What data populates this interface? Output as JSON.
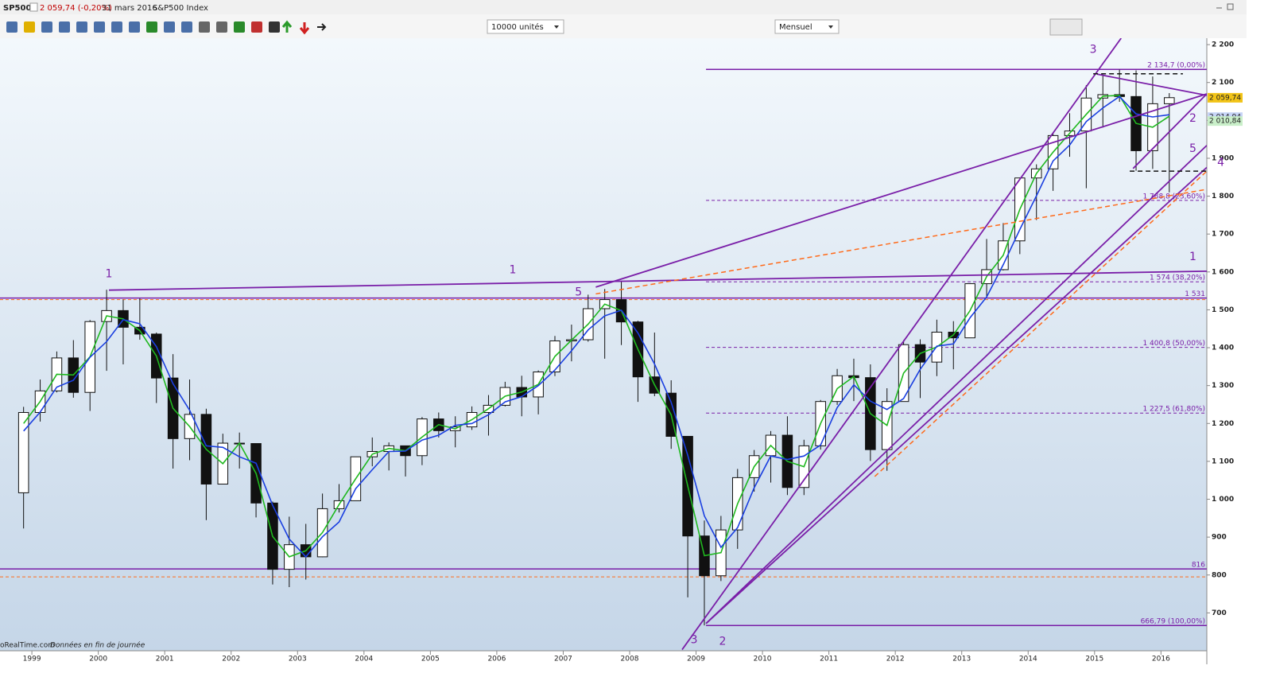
{
  "header": {
    "symbol": "SP500",
    "change": "2 059,74 (-0,20%)",
    "date": "31 mars 2016",
    "name": "S&P500 Index"
  },
  "toolbar": {
    "units": "10000 unités",
    "period": "Mensuel"
  },
  "footer": {
    "source": "oRealTime.com",
    "note": "Données en fin de journée"
  },
  "chart_data": {
    "type": "candlestick",
    "xlim": [
      1998.52,
      2016.69
    ],
    "xticks": [
      1999,
      2000,
      2001,
      2002,
      2003,
      2004,
      2005,
      2006,
      2007,
      2008,
      2009,
      2010,
      2011,
      2012,
      2013,
      2014,
      2015,
      2016
    ],
    "ylim": [
      600,
      2217
    ],
    "yticks": [
      700,
      800,
      900,
      {
        "value": 1000,
        "label": "1 000"
      },
      {
        "value": 1100,
        "label": "1 100"
      },
      {
        "value": 1200,
        "label": "1 200"
      },
      {
        "value": 1300,
        "label": "1 300"
      },
      {
        "value": 1400,
        "label": "1 400"
      },
      {
        "value": 1500,
        "label": "1 500"
      },
      {
        "value": 1600,
        "label": "1 600"
      },
      {
        "value": 1700,
        "label": "1 700"
      },
      {
        "value": 1800,
        "label": "1 800"
      },
      {
        "value": 1900,
        "label": "1 900"
      },
      {
        "value": 2000,
        "label": "2 000"
      },
      {
        "value": 2100,
        "label": "2 100"
      },
      {
        "value": 2200,
        "label": "2 200"
      }
    ],
    "x": [
      1998.875,
      1999.125,
      1999.375,
      1999.625,
      1999.875,
      2000.125,
      2000.375,
      2000.625,
      2000.875,
      2001.125,
      2001.375,
      2001.625,
      2001.875,
      2002.125,
      2002.375,
      2002.625,
      2002.875,
      2003.125,
      2003.375,
      2003.625,
      2003.875,
      2004.125,
      2004.375,
      2004.625,
      2004.875,
      2005.125,
      2005.375,
      2005.625,
      2005.875,
      2006.125,
      2006.375,
      2006.625,
      2006.875,
      2007.125,
      2007.375,
      2007.625,
      2007.875,
      2008.125,
      2008.375,
      2008.625,
      2008.875,
      2009.125,
      2009.375,
      2009.625,
      2009.875,
      2010.125,
      2010.375,
      2010.625,
      2010.875,
      2011.125,
      2011.375,
      2011.625,
      2011.875,
      2012.125,
      2012.375,
      2012.625,
      2012.875,
      2013.125,
      2013.375,
      2013.625,
      2013.875,
      2014.125,
      2014.375,
      2014.625,
      2014.875,
      2015.125,
      2015.375,
      2015.625,
      2015.875,
      2016.125
    ],
    "candles": [
      {
        "o": 1017,
        "h": 1244,
        "l": 923,
        "c": 1229
      },
      {
        "o": 1229,
        "h": 1316,
        "l": 1205,
        "c": 1286
      },
      {
        "o": 1286,
        "h": 1390,
        "l": 1282,
        "c": 1373
      },
      {
        "o": 1373,
        "h": 1420,
        "l": 1268,
        "c": 1282
      },
      {
        "o": 1282,
        "h": 1473,
        "l": 1233,
        "c": 1469
      },
      {
        "o": 1469,
        "h": 1553,
        "l": 1339,
        "c": 1498
      },
      {
        "o": 1498,
        "h": 1527,
        "l": 1356,
        "c": 1454
      },
      {
        "o": 1454,
        "h": 1530,
        "l": 1421,
        "c": 1436
      },
      {
        "o": 1436,
        "h": 1440,
        "l": 1254,
        "c": 1320
      },
      {
        "o": 1320,
        "h": 1383,
        "l": 1081,
        "c": 1160
      },
      {
        "o": 1160,
        "h": 1316,
        "l": 1103,
        "c": 1224
      },
      {
        "o": 1224,
        "h": 1239,
        "l": 945,
        "c": 1040
      },
      {
        "o": 1040,
        "h": 1173,
        "l": 1040,
        "c": 1148
      },
      {
        "o": 1148,
        "h": 1176,
        "l": 1081,
        "c": 1147
      },
      {
        "o": 1147,
        "h": 1147,
        "l": 952,
        "c": 990
      },
      {
        "o": 990,
        "h": 994,
        "l": 775,
        "c": 815
      },
      {
        "o": 815,
        "h": 954,
        "l": 768,
        "c": 880
      },
      {
        "o": 880,
        "h": 935,
        "l": 788,
        "c": 848
      },
      {
        "o": 848,
        "h": 1015,
        "l": 847,
        "c": 975
      },
      {
        "o": 975,
        "h": 1040,
        "l": 965,
        "c": 996
      },
      {
        "o": 996,
        "h": 1112,
        "l": 996,
        "c": 1112
      },
      {
        "o": 1112,
        "h": 1163,
        "l": 1087,
        "c": 1126
      },
      {
        "o": 1126,
        "h": 1150,
        "l": 1076,
        "c": 1141
      },
      {
        "o": 1141,
        "h": 1141,
        "l": 1060,
        "c": 1115
      },
      {
        "o": 1115,
        "h": 1217,
        "l": 1090,
        "c": 1212
      },
      {
        "o": 1212,
        "h": 1229,
        "l": 1163,
        "c": 1181
      },
      {
        "o": 1181,
        "h": 1219,
        "l": 1137,
        "c": 1191
      },
      {
        "o": 1191,
        "h": 1245,
        "l": 1183,
        "c": 1229
      },
      {
        "o": 1229,
        "h": 1275,
        "l": 1168,
        "c": 1248
      },
      {
        "o": 1248,
        "h": 1310,
        "l": 1245,
        "c": 1295
      },
      {
        "o": 1295,
        "h": 1326,
        "l": 1219,
        "c": 1270
      },
      {
        "o": 1270,
        "h": 1340,
        "l": 1224,
        "c": 1336
      },
      {
        "o": 1336,
        "h": 1431,
        "l": 1325,
        "c": 1418
      },
      {
        "o": 1418,
        "h": 1461,
        "l": 1364,
        "c": 1421
      },
      {
        "o": 1421,
        "h": 1540,
        "l": 1416,
        "c": 1503
      },
      {
        "o": 1503,
        "h": 1555,
        "l": 1371,
        "c": 1527
      },
      {
        "o": 1527,
        "h": 1576,
        "l": 1407,
        "c": 1468
      },
      {
        "o": 1468,
        "h": 1471,
        "l": 1257,
        "c": 1323
      },
      {
        "o": 1323,
        "h": 1440,
        "l": 1272,
        "c": 1280
      },
      {
        "o": 1280,
        "h": 1314,
        "l": 1133,
        "c": 1166
      },
      {
        "o": 1166,
        "h": 1167,
        "l": 741,
        "c": 903
      },
      {
        "o": 903,
        "h": 944,
        "l": 667,
        "c": 798
      },
      {
        "o": 798,
        "h": 956,
        "l": 784,
        "c": 919
      },
      {
        "o": 919,
        "h": 1080,
        "l": 869,
        "c": 1057
      },
      {
        "o": 1057,
        "h": 1130,
        "l": 1020,
        "c": 1115
      },
      {
        "o": 1115,
        "h": 1180,
        "l": 1044,
        "c": 1169
      },
      {
        "o": 1169,
        "h": 1219,
        "l": 1011,
        "c": 1031
      },
      {
        "o": 1031,
        "h": 1157,
        "l": 1011,
        "c": 1141
      },
      {
        "o": 1141,
        "h": 1262,
        "l": 1131,
        "c": 1258
      },
      {
        "o": 1258,
        "h": 1344,
        "l": 1249,
        "c": 1326
      },
      {
        "o": 1326,
        "h": 1371,
        "l": 1259,
        "c": 1321
      },
      {
        "o": 1321,
        "h": 1356,
        "l": 1101,
        "c": 1131
      },
      {
        "o": 1131,
        "h": 1293,
        "l": 1075,
        "c": 1258
      },
      {
        "o": 1258,
        "h": 1420,
        "l": 1258,
        "c": 1408
      },
      {
        "o": 1408,
        "h": 1422,
        "l": 1267,
        "c": 1362
      },
      {
        "o": 1362,
        "h": 1474,
        "l": 1325,
        "c": 1441
      },
      {
        "o": 1441,
        "h": 1470,
        "l": 1343,
        "c": 1426
      },
      {
        "o": 1426,
        "h": 1570,
        "l": 1426,
        "c": 1569
      },
      {
        "o": 1569,
        "h": 1687,
        "l": 1536,
        "c": 1606
      },
      {
        "o": 1606,
        "h": 1729,
        "l": 1604,
        "c": 1682
      },
      {
        "o": 1682,
        "h": 1849,
        "l": 1647,
        "c": 1848
      },
      {
        "o": 1848,
        "h": 1884,
        "l": 1737,
        "c": 1872
      },
      {
        "o": 1872,
        "h": 1968,
        "l": 1814,
        "c": 1960
      },
      {
        "o": 1960,
        "h": 2019,
        "l": 1904,
        "c": 1972
      },
      {
        "o": 1972,
        "h": 2093,
        "l": 1821,
        "c": 2059
      },
      {
        "o": 2059,
        "h": 2119,
        "l": 1981,
        "c": 2068
      },
      {
        "o": 2068,
        "h": 2134,
        "l": 2049,
        "c": 2063
      },
      {
        "o": 2063,
        "h": 2132,
        "l": 1867,
        "c": 1920
      },
      {
        "o": 1920,
        "h": 2116,
        "l": 1872,
        "c": 2044
      },
      {
        "o": 2044,
        "h": 2072,
        "l": 1810,
        "c": 2060
      }
    ],
    "lines": [
      {
        "color": "#1fb81f",
        "values": [
          1200,
          1258,
          1330,
          1328,
          1376,
          1484,
          1476,
          1445,
          1378,
          1240,
          1192,
          1132,
          1094,
          1148,
          1068,
          902,
          848,
          864,
          912,
          986,
          1054,
          1119,
          1134,
          1128,
          1164,
          1197,
          1186,
          1210,
          1239,
          1272,
          1283,
          1303,
          1377,
          1420,
          1462,
          1515,
          1498,
          1396,
          1302,
          1223,
          1035,
          851,
          859,
          988,
          1086,
          1142,
          1100,
          1086,
          1200,
          1292,
          1324,
          1226,
          1195,
          1333,
          1385,
          1402,
          1434,
          1498,
          1588,
          1644,
          1765,
          1860,
          1916,
          1966,
          2016,
          2064,
          2066,
          1992,
          1982,
          2011
        ]
      },
      {
        "color": "#1a3fe0",
        "values": [
          1180,
          1230,
          1296,
          1314,
          1375,
          1416,
          1474,
          1463,
          1403,
          1305,
          1235,
          1141,
          1137,
          1112,
          1095,
          984,
          895,
          848,
          901,
          940,
          1028,
          1078,
          1126,
          1127,
          1156,
          1169,
          1195,
          1200,
          1223,
          1257,
          1271,
          1300,
          1341,
          1392,
          1447,
          1484,
          1499,
          1439,
          1357,
          1256,
          1116,
          956,
          873,
          925,
          1030,
          1114,
          1105,
          1114,
          1143,
          1242,
          1302,
          1259,
          1237,
          1266,
          1343,
          1404,
          1410,
          1479,
          1534,
          1619,
          1712,
          1801,
          1893,
          1935,
          1997,
          2033,
          2063,
          2017,
          2009,
          2015
        ]
      }
    ],
    "levels": [
      {
        "value": 1531,
        "label": "1 531",
        "from": 1998.52,
        "color": "#7a1fa8",
        "dash": false
      },
      {
        "value": 816,
        "label": "816",
        "from": 1998.52,
        "color": "#7a1fa8",
        "dash": false
      },
      {
        "value": 1527,
        "from": 1998.52,
        "color": "#ff6a1a",
        "dash": true
      },
      {
        "value": 795,
        "from": 1998.52,
        "color": "#ff6a1a",
        "dash": true
      },
      {
        "value": 2134.7,
        "label": "2 134,7 (0,00%)",
        "from": 2009.15,
        "color": "#7a1fa8",
        "dash": false
      },
      {
        "value": 1788.8,
        "label": "1 788,8 (23,60%)",
        "from": 2009.15,
        "color": "#7a1fa8",
        "dash": true
      },
      {
        "value": 1574,
        "label": "1 574 (38,20%)",
        "from": 2009.15,
        "color": "#7a1fa8",
        "dash": true
      },
      {
        "value": 1400.8,
        "label": "1 400,8 (50,00%)",
        "from": 2009.15,
        "color": "#7a1fa8",
        "dash": true
      },
      {
        "value": 1227.5,
        "label": "1 227,5 (61,80%)",
        "from": 2009.15,
        "color": "#7a1fa8",
        "dash": true
      },
      {
        "value": 666.79,
        "label": "666,79 (100,00%)",
        "from": 2009.15,
        "color": "#7a1fa8",
        "dash": false
      }
    ],
    "trendlines": [
      {
        "x1": 2000.16,
        "y1": 1552,
        "x2": 2016.69,
        "y2": 1602,
        "color": "#7a1fa8",
        "dash": false
      },
      {
        "x1": 2007.49,
        "y1": 1560,
        "x2": 2016.69,
        "y2": 2070,
        "color": "#7a1fa8",
        "dash": false
      },
      {
        "x1": 2008.79,
        "y1": 603,
        "x2": 2015.4,
        "y2": 2217,
        "color": "#7a1fa8",
        "dash": false
      },
      {
        "x1": 2009.15,
        "y1": 672,
        "x2": 2016.69,
        "y2": 1934,
        "color": "#7a1fa8",
        "dash": false
      },
      {
        "x1": 2009.15,
        "y1": 672,
        "x2": 2016.69,
        "y2": 1876,
        "color": "#7a1fa8",
        "dash": false
      },
      {
        "x1": 2015.58,
        "y1": 1873,
        "x2": 2016.69,
        "y2": 2070,
        "color": "#7a1fa8",
        "dash": false
      },
      {
        "x1": 2015.04,
        "y1": 2122,
        "x2": 2016.69,
        "y2": 2066,
        "color": "#7a1fa8",
        "dash": false
      },
      {
        "x1": 2007.49,
        "y1": 1542,
        "x2": 2016.69,
        "y2": 1818,
        "color": "#ff6a1a",
        "dash": true
      },
      {
        "x1": 2011.69,
        "y1": 1060,
        "x2": 2016.69,
        "y2": 1866,
        "color": "#ff6a1a",
        "dash": true
      },
      {
        "x1": 2014.98,
        "y1": 2123,
        "x2": 2016.33,
        "y2": 2123,
        "color": "#111111",
        "dash": true
      },
      {
        "x1": 2015.53,
        "y1": 1866,
        "x2": 2016.69,
        "y2": 1866,
        "color": "#111111",
        "dash": true
      }
    ],
    "waves": [
      {
        "label": "1",
        "x": 2000.16,
        "y": 1594
      },
      {
        "label": "1",
        "x": 2006.24,
        "y": 1605
      },
      {
        "label": "5",
        "x": 2007.23,
        "y": 1546
      },
      {
        "label": "3",
        "x": 2014.98,
        "y": 2187
      },
      {
        "label": "2",
        "x": 2016.48,
        "y": 2005
      },
      {
        "label": "5",
        "x": 2016.48,
        "y": 1925
      },
      {
        "label": "4",
        "x": 2016.9,
        "y": 1888
      },
      {
        "label": "1",
        "x": 2016.48,
        "y": 1640
      },
      {
        "label": "3",
        "x": 2008.97,
        "y": 628
      },
      {
        "label": "2",
        "x": 2009.4,
        "y": 624
      }
    ],
    "price_tags": [
      {
        "value": 2059.74,
        "label": "2 059,74",
        "color": "#f2c418"
      },
      {
        "value": 2014.94,
        "label": "2 014,94",
        "color": "#c7d4f7"
      },
      {
        "value": 2010.84,
        "label": "2 010,84",
        "color": "#c9efc9"
      }
    ]
  }
}
